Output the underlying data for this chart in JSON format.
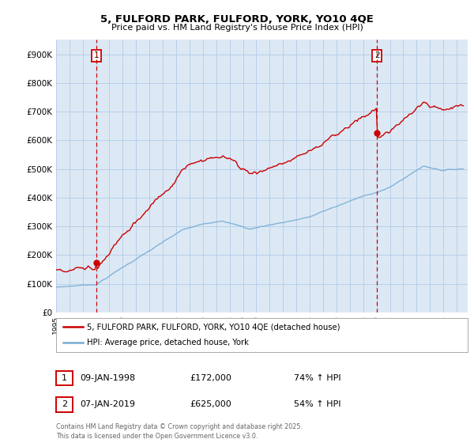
{
  "title_line1": "5, FULFORD PARK, FULFORD, YORK, YO10 4QE",
  "title_line2": "Price paid vs. HM Land Registry's House Price Index (HPI)",
  "red_label": "5, FULFORD PARK, FULFORD, YORK, YO10 4QE (detached house)",
  "blue_label": "HPI: Average price, detached house, York",
  "annotation1": {
    "num": "1",
    "date": "09-JAN-1998",
    "price": "£172,000",
    "pct": "74% ↑ HPI"
  },
  "annotation2": {
    "num": "2",
    "date": "07-JAN-2019",
    "price": "£625,000",
    "pct": "54% ↑ HPI"
  },
  "copyright": "Contains HM Land Registry data © Crown copyright and database right 2025.\nThis data is licensed under the Open Government Licence v3.0.",
  "red_color": "#cc0000",
  "blue_color": "#7aadd4",
  "plot_bg_color": "#dce9f5",
  "grid_color": "#b8cfe8",
  "background_color": "#ffffff",
  "ylim": [
    0,
    950000
  ],
  "yticks": [
    0,
    100000,
    200000,
    300000,
    400000,
    500000,
    600000,
    700000,
    800000,
    900000
  ],
  "ytick_labels": [
    "£0",
    "£100K",
    "£200K",
    "£300K",
    "£400K",
    "£500K",
    "£600K",
    "£700K",
    "£800K",
    "£900K"
  ],
  "vline1_x": 1998.04,
  "vline2_x": 2019.04,
  "marker1_y": 172000,
  "marker2_y": 625000,
  "xlim_start": 1995.0,
  "xlim_end": 2025.8
}
